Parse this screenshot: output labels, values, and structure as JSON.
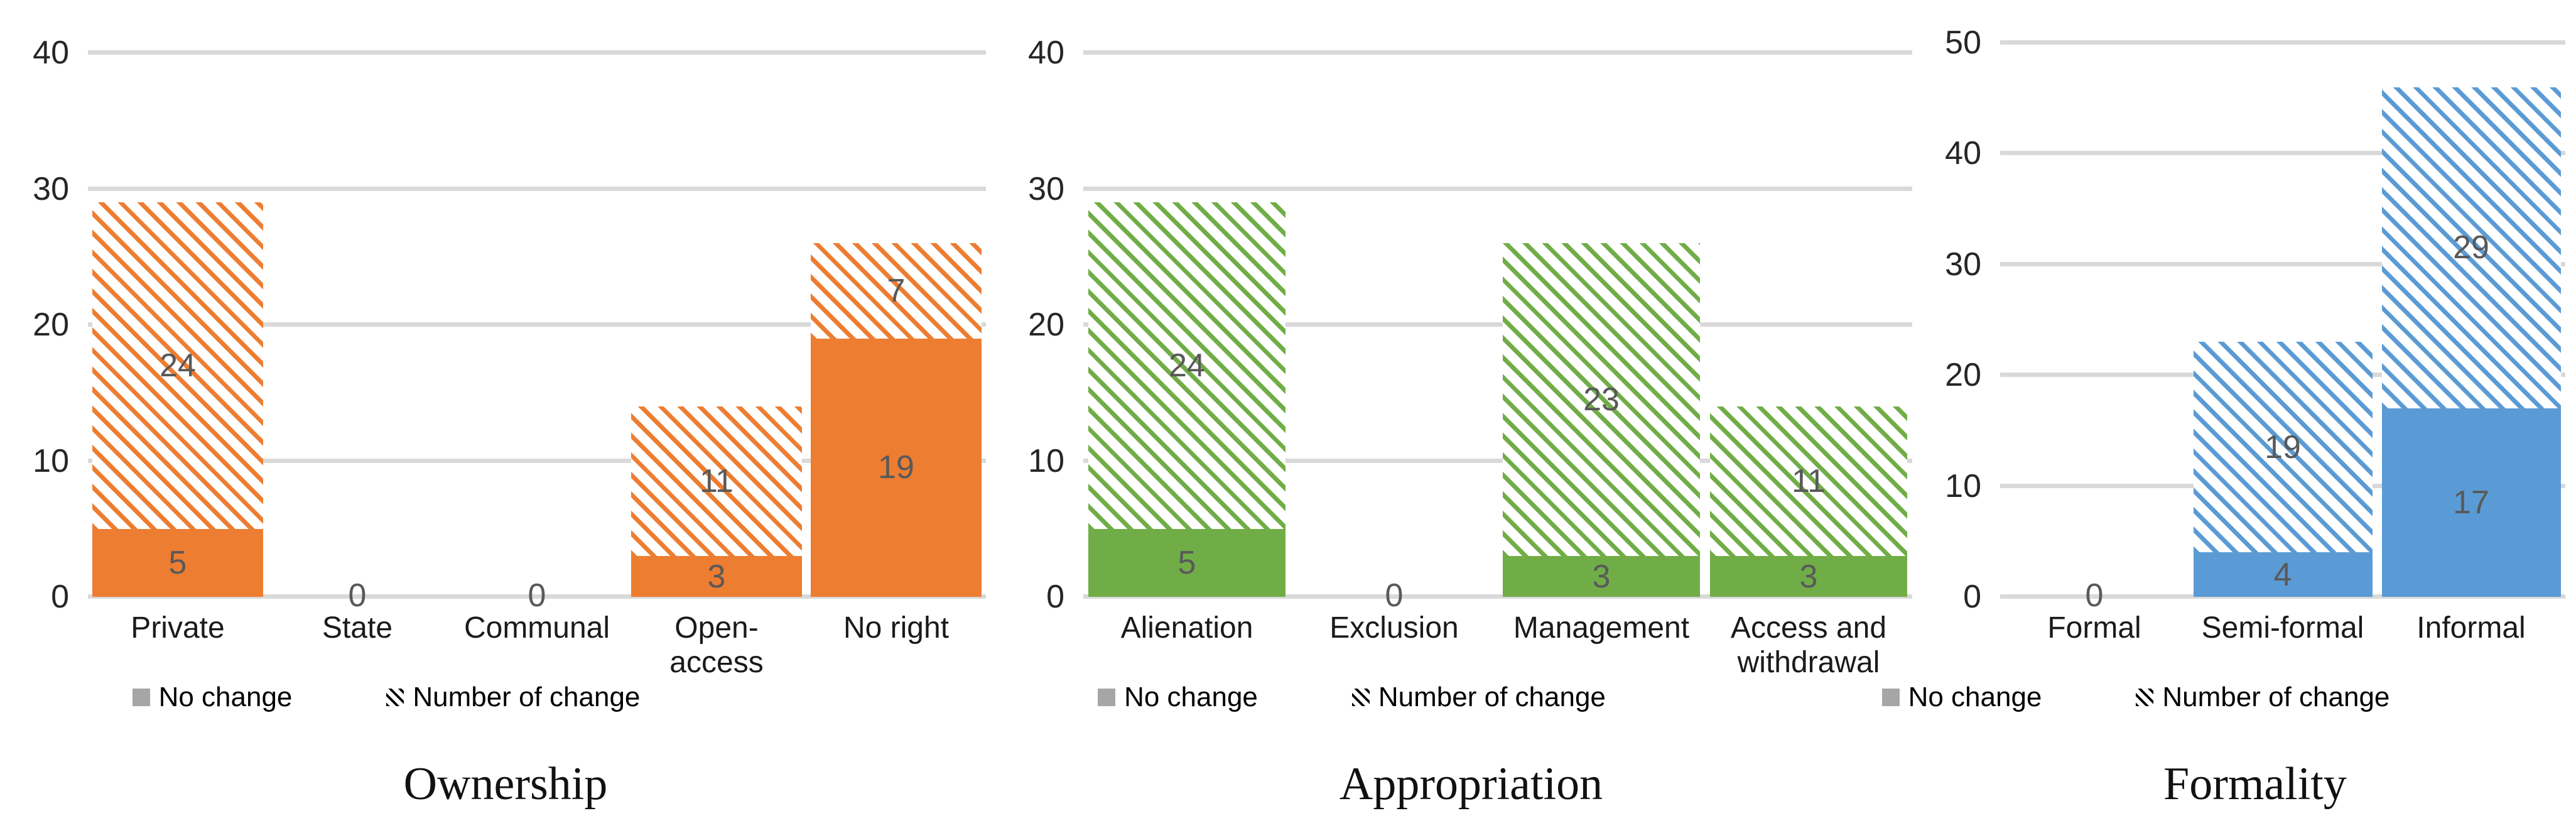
{
  "figure": {
    "background": "#ffffff",
    "colors": {
      "grid": "#D9D9D9",
      "data_label": "#595959",
      "tick_label": "#262626",
      "category_label": "#1a1a1a",
      "no_change_legend_key": "#A6A6A6",
      "number_of_change_legend_key": "#000000"
    }
  },
  "chart_data": [
    {
      "type": "bar",
      "stacked": true,
      "title": "Ownership",
      "categories": [
        "Private",
        "State",
        "Communal",
        "Open-access",
        "No right"
      ],
      "series": [
        {
          "name": "No change",
          "values": [
            5,
            0,
            0,
            3,
            19
          ],
          "fill": "solid"
        },
        {
          "name": "Number of change",
          "values": [
            24,
            0,
            0,
            11,
            7
          ],
          "fill": "diagonal-hatch"
        }
      ],
      "bar_color": "#ED7D31",
      "ylim": [
        0,
        40
      ],
      "yticks": [
        0,
        10,
        20,
        30,
        40
      ],
      "grid": true,
      "data_labels": true,
      "legend_position": "bottom",
      "xlabel": "",
      "ylabel": ""
    },
    {
      "type": "bar",
      "stacked": true,
      "title": "Appropriation",
      "categories": [
        "Alienation",
        "Exclusion",
        "Management",
        "Access and withdrawal"
      ],
      "series": [
        {
          "name": "No change",
          "values": [
            5,
            0,
            3,
            3
          ],
          "fill": "solid"
        },
        {
          "name": "Number of change",
          "values": [
            24,
            0,
            23,
            11
          ],
          "fill": "diagonal-hatch"
        }
      ],
      "bar_color": "#70AD47",
      "ylim": [
        0,
        40
      ],
      "yticks": [
        0,
        10,
        20,
        30,
        40
      ],
      "grid": true,
      "data_labels": true,
      "legend_position": "bottom",
      "xlabel": "",
      "ylabel": ""
    },
    {
      "type": "bar",
      "stacked": true,
      "title": "Formality",
      "categories": [
        "Formal",
        "Semi-formal",
        "Informal"
      ],
      "series": [
        {
          "name": "No change",
          "values": [
            0,
            4,
            17
          ],
          "fill": "solid"
        },
        {
          "name": "Number of change",
          "values": [
            0,
            19,
            29
          ],
          "fill": "diagonal-hatch"
        }
      ],
      "bar_color": "#5B9BD5",
      "ylim": [
        0,
        50
      ],
      "yticks": [
        0,
        10,
        20,
        30,
        40,
        50
      ],
      "grid": true,
      "data_labels": true,
      "legend_position": "bottom",
      "xlabel": "",
      "ylabel": ""
    }
  ]
}
